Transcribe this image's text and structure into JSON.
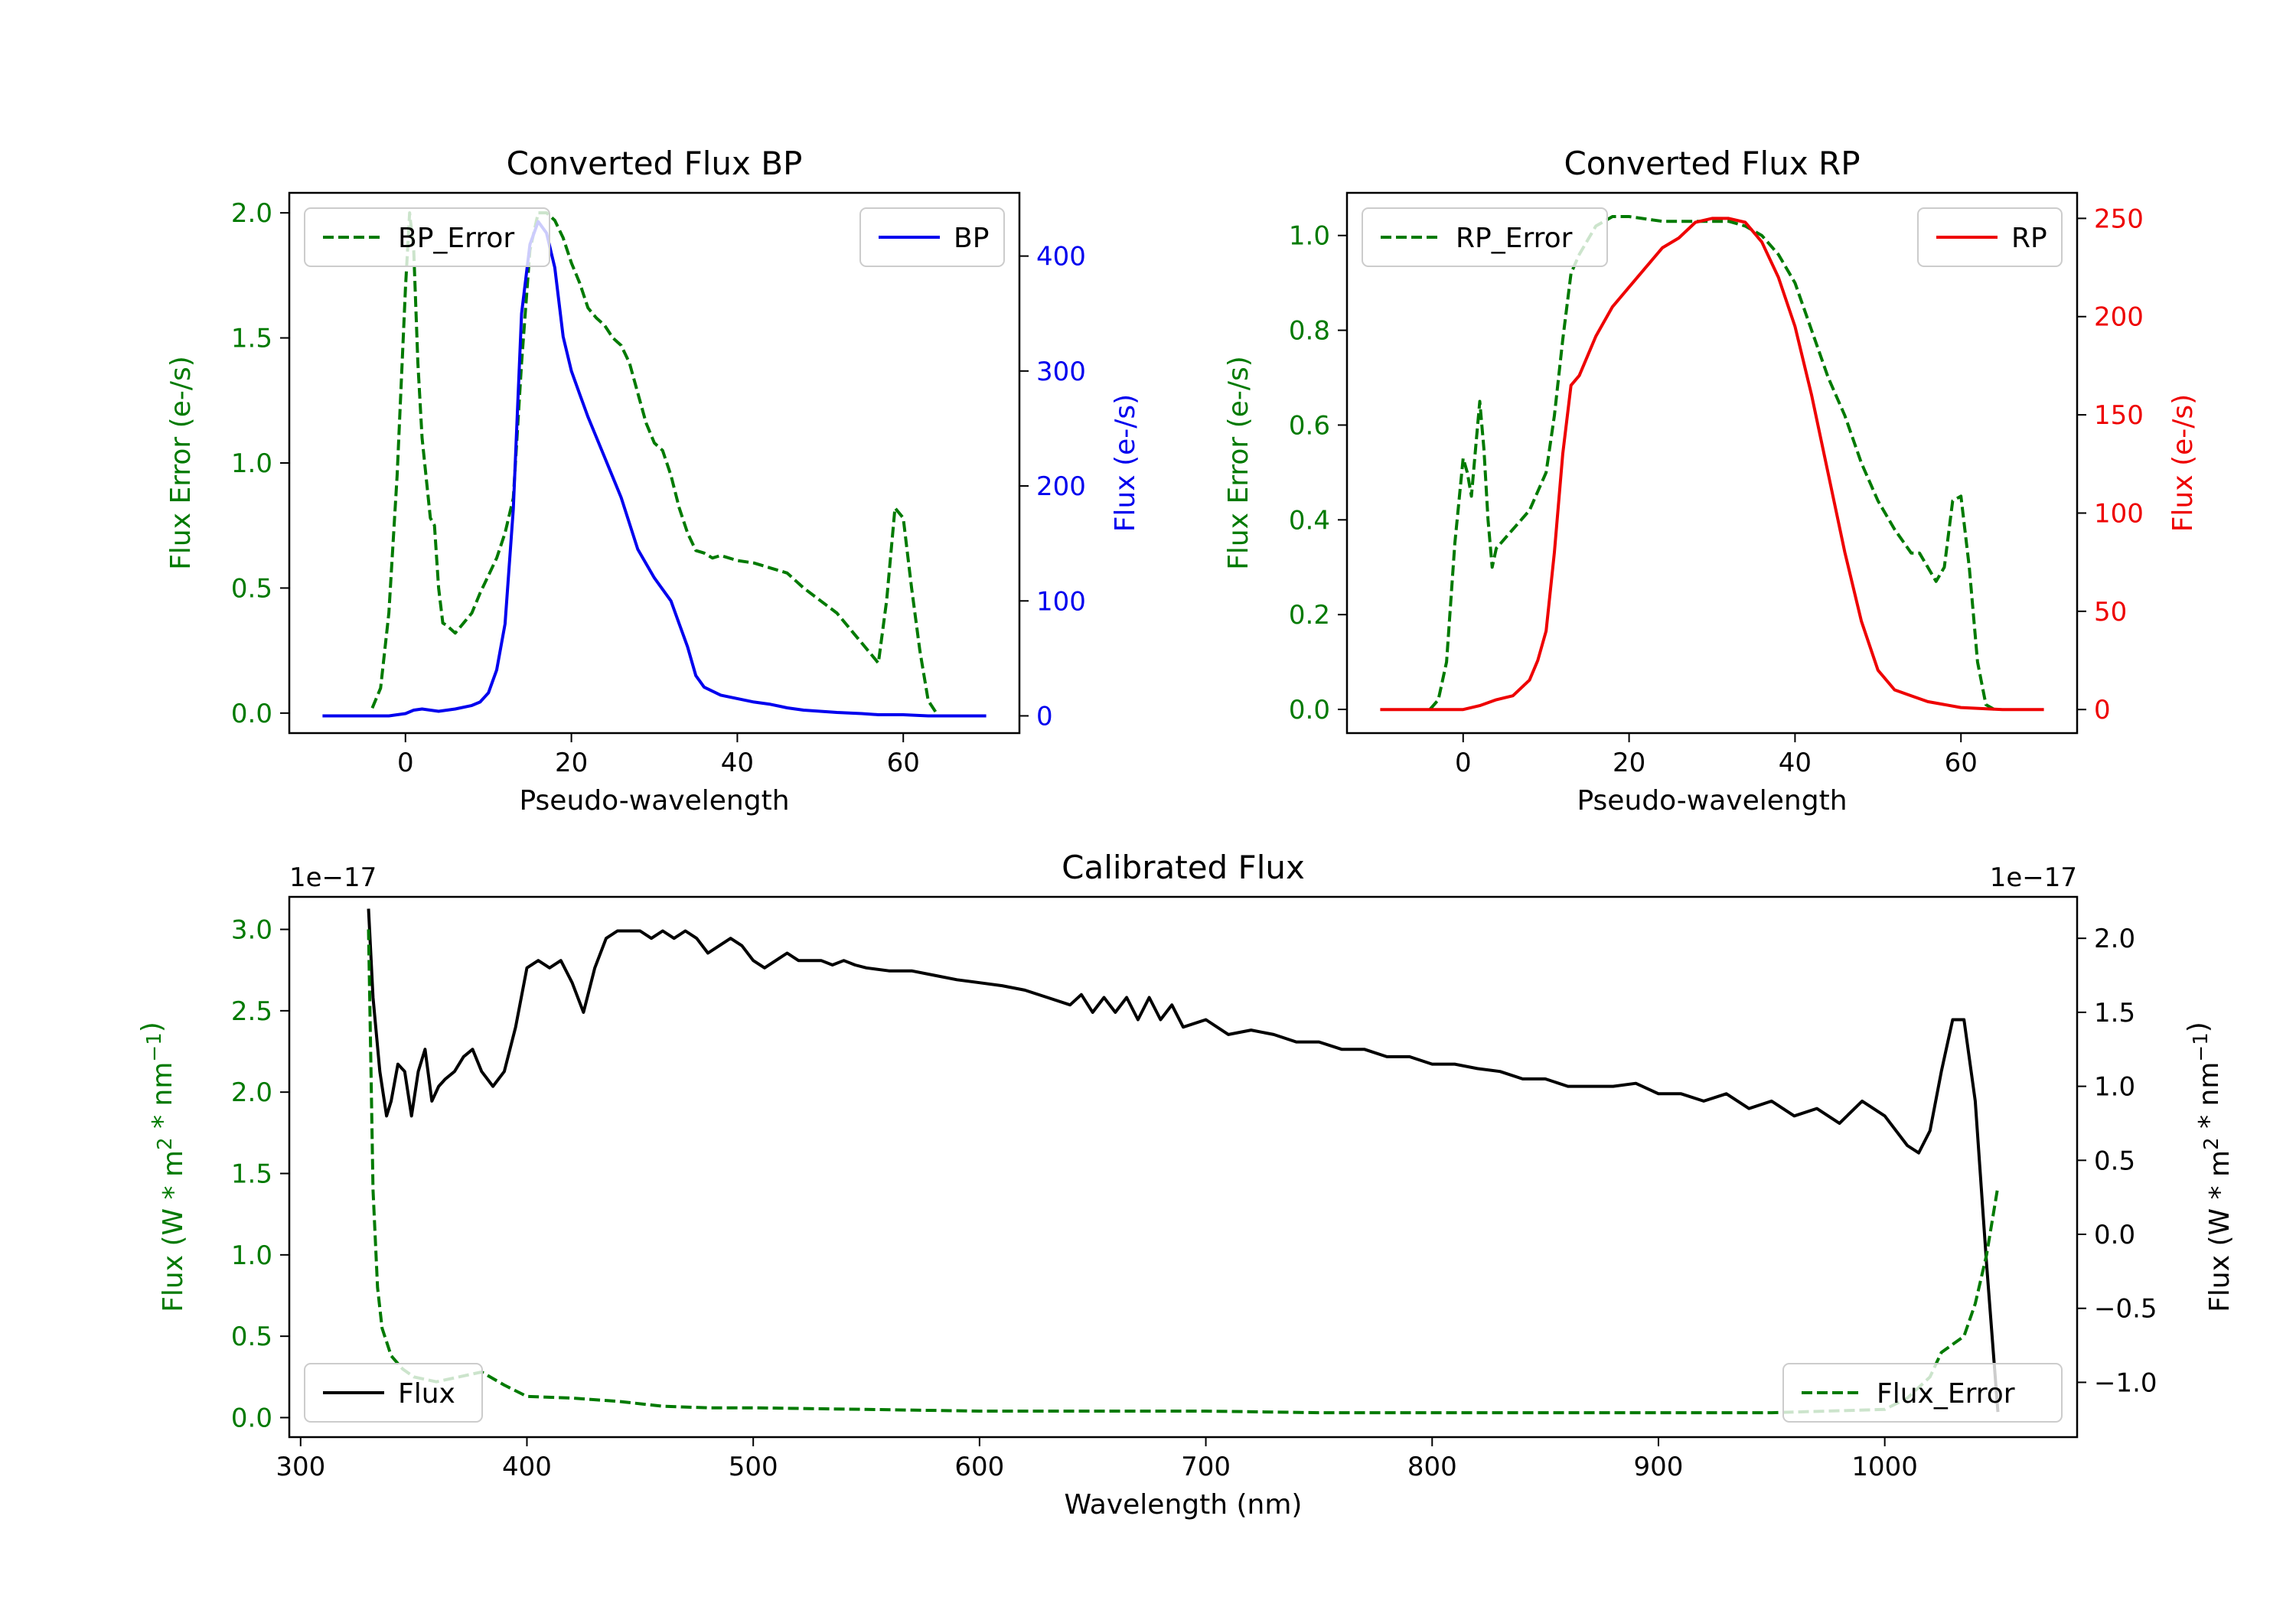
{
  "colors": {
    "error": "#007a00",
    "bp": "#0000ee",
    "rp": "#ee0000",
    "flux": "#000000",
    "axis": "#000000"
  },
  "chart_data": [
    {
      "id": "bp",
      "type": "line",
      "title": "Converted Flux BP",
      "xlabel": "Pseudo-wavelength",
      "ylabel_left": "Flux Error (e-/s)",
      "ylabel_right": "Flux (e-/s)",
      "xlim": [
        -14,
        74
      ],
      "ylim_left": [
        -0.08,
        2.08
      ],
      "ylim_right": [
        -15,
        455
      ],
      "xticks": [
        0,
        20,
        40,
        60
      ],
      "yticks_left": [
        0.0,
        0.5,
        1.0,
        1.5,
        2.0
      ],
      "yticks_left_labels": [
        "0.0",
        "0.5",
        "1.0",
        "1.5",
        "2.0"
      ],
      "yticks_right": [
        0,
        100,
        200,
        300,
        400
      ],
      "yticks_right_labels": [
        "0",
        "100",
        "200",
        "300",
        "400"
      ],
      "legend_left": "top-left",
      "legend_right": "top-right",
      "series": [
        {
          "name": "BP_Error",
          "axis": "left",
          "style": "dashed",
          "color_key": "error",
          "x": [
            -4,
            -3,
            -2,
            -1,
            0,
            0.5,
            1,
            1.5,
            2,
            3,
            3.5,
            4,
            4.5,
            5,
            6,
            7,
            8,
            9,
            10,
            11,
            12,
            13,
            14,
            15,
            16,
            17,
            18,
            19,
            20,
            21,
            22,
            23,
            24,
            25,
            26,
            27,
            28,
            29,
            30,
            31,
            32,
            33,
            34,
            35,
            36,
            37,
            38,
            40,
            42,
            44,
            46,
            48,
            50,
            52,
            54,
            56,
            57,
            58,
            59,
            60,
            61,
            62,
            63,
            64
          ],
          "y": [
            0.02,
            0.1,
            0.4,
            0.95,
            1.7,
            2.0,
            1.85,
            1.4,
            1.1,
            0.78,
            0.75,
            0.5,
            0.36,
            0.35,
            0.32,
            0.36,
            0.4,
            0.48,
            0.55,
            0.62,
            0.72,
            0.86,
            1.4,
            1.85,
            2.0,
            2.0,
            1.97,
            1.9,
            1.8,
            1.72,
            1.62,
            1.58,
            1.55,
            1.5,
            1.47,
            1.4,
            1.28,
            1.16,
            1.08,
            1.05,
            0.95,
            0.82,
            0.72,
            0.65,
            0.64,
            0.62,
            0.63,
            0.61,
            0.6,
            0.58,
            0.56,
            0.5,
            0.45,
            0.4,
            0.32,
            0.24,
            0.2,
            0.45,
            0.82,
            0.78,
            0.5,
            0.25,
            0.05,
            0.0
          ]
        },
        {
          "name": "BP",
          "axis": "right",
          "style": "solid",
          "color_key": "bp",
          "x": [
            -10,
            -8,
            -5,
            -2,
            0,
            1,
            2,
            3,
            4,
            6,
            8,
            9,
            10,
            11,
            12,
            13,
            14,
            15,
            16,
            17,
            18,
            19,
            20,
            21,
            22,
            24,
            26,
            28,
            30,
            31,
            32,
            33,
            34,
            35,
            36,
            38,
            40,
            42,
            44,
            46,
            48,
            50,
            52,
            55,
            57,
            60,
            63,
            66,
            70
          ],
          "y": [
            0,
            0,
            0,
            0,
            2,
            5,
            6,
            5,
            4,
            6,
            9,
            12,
            20,
            40,
            80,
            180,
            350,
            410,
            430,
            420,
            390,
            330,
            300,
            280,
            260,
            225,
            190,
            145,
            120,
            110,
            100,
            80,
            60,
            35,
            25,
            18,
            15,
            12,
            10,
            7,
            5,
            4,
            3,
            2,
            1,
            1,
            0,
            0,
            0
          ]
        }
      ]
    },
    {
      "id": "rp",
      "type": "line",
      "title": "Converted Flux RP",
      "xlabel": "Pseudo-wavelength",
      "ylabel_left": "Flux Error (e-/s)",
      "ylabel_right": "Flux (e-/s)",
      "xlim": [
        -14,
        74
      ],
      "ylim_left": [
        -0.05,
        1.09
      ],
      "ylim_right": [
        -12,
        263
      ],
      "xticks": [
        0,
        20,
        40,
        60
      ],
      "yticks_left": [
        0.0,
        0.2,
        0.4,
        0.6,
        0.8,
        1.0
      ],
      "yticks_left_labels": [
        "0.0",
        "0.2",
        "0.4",
        "0.6",
        "0.8",
        "1.0"
      ],
      "yticks_right": [
        0,
        50,
        100,
        150,
        200,
        250
      ],
      "yticks_right_labels": [
        "0",
        "50",
        "100",
        "150",
        "200",
        "250"
      ],
      "legend_left": "top-left",
      "legend_right": "top-right",
      "series": [
        {
          "name": "RP_Error",
          "axis": "left",
          "style": "dashed",
          "color_key": "error",
          "x": [
            -4,
            -3,
            -2,
            -1,
            0,
            0.5,
            1,
            1.5,
            2,
            2.5,
            3,
            3.5,
            4,
            5,
            6,
            8,
            10,
            11,
            12,
            13,
            14,
            16,
            18,
            20,
            24,
            28,
            32,
            34,
            36,
            38,
            40,
            42,
            44,
            46,
            48,
            50,
            52,
            54,
            55,
            56,
            57,
            58,
            59,
            60,
            61,
            62,
            63,
            64
          ],
          "y": [
            0.0,
            0.02,
            0.1,
            0.35,
            0.53,
            0.5,
            0.45,
            0.55,
            0.65,
            0.55,
            0.4,
            0.3,
            0.34,
            0.36,
            0.38,
            0.42,
            0.5,
            0.62,
            0.78,
            0.92,
            0.96,
            1.02,
            1.04,
            1.04,
            1.03,
            1.03,
            1.03,
            1.02,
            1.0,
            0.96,
            0.9,
            0.8,
            0.7,
            0.62,
            0.52,
            0.44,
            0.38,
            0.33,
            0.33,
            0.3,
            0.27,
            0.3,
            0.44,
            0.45,
            0.3,
            0.1,
            0.01,
            0.0
          ]
        },
        {
          "name": "RP",
          "axis": "right",
          "style": "solid",
          "color_key": "rp",
          "x": [
            -10,
            -5,
            0,
            2,
            4,
            6,
            8,
            9,
            10,
            11,
            12,
            13,
            14,
            16,
            18,
            20,
            22,
            24,
            26,
            28,
            30,
            32,
            34,
            36,
            38,
            40,
            42,
            44,
            46,
            48,
            50,
            52,
            54,
            56,
            60,
            65,
            70
          ],
          "y": [
            0,
            0,
            0,
            2,
            5,
            7,
            15,
            25,
            40,
            80,
            130,
            165,
            170,
            190,
            205,
            215,
            225,
            235,
            240,
            248,
            250,
            250,
            248,
            238,
            220,
            195,
            160,
            120,
            80,
            45,
            20,
            10,
            7,
            4,
            1,
            0,
            0
          ]
        }
      ]
    },
    {
      "id": "calibrated",
      "type": "line",
      "title": "Calibrated Flux",
      "xlabel": "Wavelength (nm)",
      "ylabel_left": "Flux (W * m$^2$ * nm$^{-1}$)",
      "ylabel_right": "Flux (W * m$^2$ * nm$^{-1}$)",
      "offset_left": "1e−17",
      "offset_right": "1e−17",
      "xlim": [
        295,
        1085
      ],
      "ylim_left": [
        -0.12,
        3.2
      ],
      "ylim_right": [
        -1.37,
        2.28
      ],
      "xticks": [
        300,
        400,
        500,
        600,
        700,
        800,
        900,
        1000
      ],
      "yticks_left": [
        0.0,
        0.5,
        1.0,
        1.5,
        2.0,
        2.5,
        3.0
      ],
      "yticks_left_labels": [
        "0.0",
        "0.5",
        "1.0",
        "1.5",
        "2.0",
        "2.5",
        "3.0"
      ],
      "yticks_right": [
        -1.0,
        -0.5,
        0.0,
        0.5,
        1.0,
        1.5,
        2.0
      ],
      "yticks_right_labels": [
        "−1.0",
        "−0.5",
        "0.0",
        "0.5",
        "1.0",
        "1.5",
        "2.0"
      ],
      "legend_left": "bottom-left",
      "legend_right": "bottom-right",
      "series": [
        {
          "name": "Flux",
          "axis": "right",
          "style": "solid",
          "color_key": "flux",
          "x": [
            330,
            332,
            335,
            338,
            340,
            343,
            346,
            349,
            352,
            355,
            358,
            361,
            364,
            368,
            372,
            376,
            380,
            385,
            390,
            395,
            400,
            405,
            410,
            415,
            420,
            425,
            430,
            435,
            440,
            445,
            450,
            455,
            460,
            465,
            470,
            475,
            480,
            485,
            490,
            495,
            500,
            505,
            510,
            515,
            520,
            525,
            530,
            535,
            540,
            545,
            550,
            560,
            570,
            580,
            590,
            600,
            610,
            620,
            630,
            640,
            645,
            650,
            655,
            660,
            665,
            670,
            675,
            680,
            685,
            690,
            700,
            710,
            720,
            730,
            740,
            750,
            760,
            770,
            780,
            790,
            800,
            810,
            820,
            830,
            840,
            850,
            860,
            870,
            880,
            890,
            900,
            910,
            920,
            930,
            940,
            950,
            960,
            970,
            980,
            990,
            1000,
            1010,
            1015,
            1020,
            1025,
            1030,
            1035,
            1040,
            1045,
            1050
          ],
          "y": [
            2.2,
            1.6,
            1.1,
            0.8,
            0.9,
            1.15,
            1.1,
            0.8,
            1.1,
            1.25,
            0.9,
            1.0,
            1.05,
            1.1,
            1.2,
            1.25,
            1.1,
            1.0,
            1.1,
            1.4,
            1.8,
            1.85,
            1.8,
            1.85,
            1.7,
            1.5,
            1.8,
            2.0,
            2.05,
            2.05,
            2.05,
            2.0,
            2.05,
            2.0,
            2.05,
            2.0,
            1.9,
            1.95,
            2.0,
            1.95,
            1.85,
            1.8,
            1.85,
            1.9,
            1.85,
            1.85,
            1.85,
            1.82,
            1.85,
            1.82,
            1.8,
            1.78,
            1.78,
            1.75,
            1.72,
            1.7,
            1.68,
            1.65,
            1.6,
            1.55,
            1.62,
            1.5,
            1.6,
            1.5,
            1.6,
            1.45,
            1.6,
            1.45,
            1.55,
            1.4,
            1.45,
            1.35,
            1.38,
            1.35,
            1.3,
            1.3,
            1.25,
            1.25,
            1.2,
            1.2,
            1.15,
            1.15,
            1.12,
            1.1,
            1.05,
            1.05,
            1.0,
            1.0,
            1.0,
            1.02,
            0.95,
            0.95,
            0.9,
            0.95,
            0.85,
            0.9,
            0.8,
            0.85,
            0.75,
            0.9,
            0.8,
            0.6,
            0.55,
            0.7,
            1.1,
            1.45,
            1.45,
            0.9,
            -0.2,
            -1.2
          ]
        },
        {
          "name": "Flux_Error",
          "axis": "left",
          "style": "dashed",
          "color_key": "error",
          "x": [
            330,
            331,
            332,
            334,
            336,
            340,
            345,
            350,
            360,
            370,
            380,
            390,
            400,
            420,
            440,
            460,
            480,
            500,
            550,
            600,
            650,
            700,
            750,
            800,
            850,
            900,
            950,
            1000,
            1010,
            1020,
            1025,
            1030,
            1035,
            1040,
            1045,
            1050
          ],
          "y": [
            3.0,
            2.2,
            1.4,
            0.8,
            0.55,
            0.38,
            0.3,
            0.25,
            0.22,
            0.25,
            0.28,
            0.2,
            0.13,
            0.12,
            0.1,
            0.07,
            0.06,
            0.06,
            0.05,
            0.04,
            0.04,
            0.04,
            0.03,
            0.03,
            0.03,
            0.03,
            0.03,
            0.05,
            0.12,
            0.25,
            0.4,
            0.45,
            0.5,
            0.7,
            1.0,
            1.42
          ]
        }
      ]
    }
  ]
}
